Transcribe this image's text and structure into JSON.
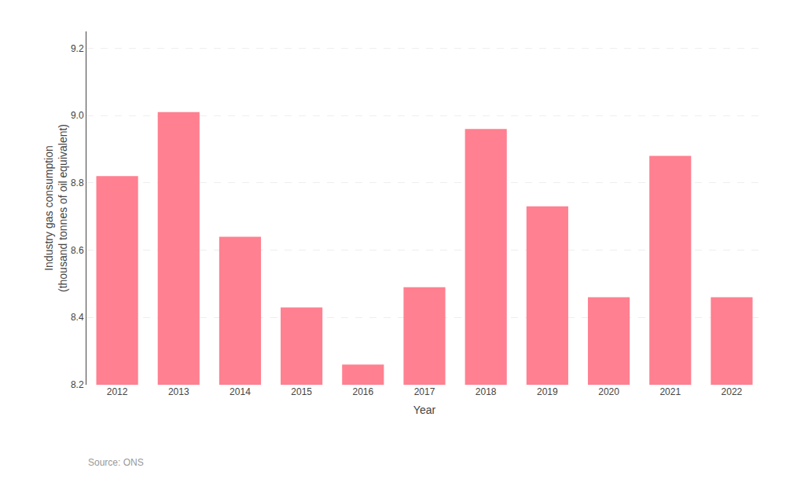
{
  "chart_data": {
    "type": "bar",
    "xlabel": "Year",
    "ylabel": "Industry gas consumption\n(thousand tonnes of oil equivalent)",
    "categories": [
      "2012",
      "2013",
      "2014",
      "2015",
      "2016",
      "2017",
      "2018",
      "2019",
      "2020",
      "2021",
      "2022"
    ],
    "values": [
      8.82,
      9.01,
      8.64,
      8.43,
      8.26,
      8.49,
      8.96,
      8.73,
      8.46,
      8.88,
      8.46
    ],
    "color": "#FF8090",
    "ylim": [
      8.2,
      9.25
    ],
    "yticks": [
      8.2,
      8.4,
      8.6,
      8.8,
      {
        "value": 9.0,
        "label": "9.0"
      },
      9.2
    ],
    "grid": true,
    "annotations": [
      "Source: ONS"
    ]
  }
}
